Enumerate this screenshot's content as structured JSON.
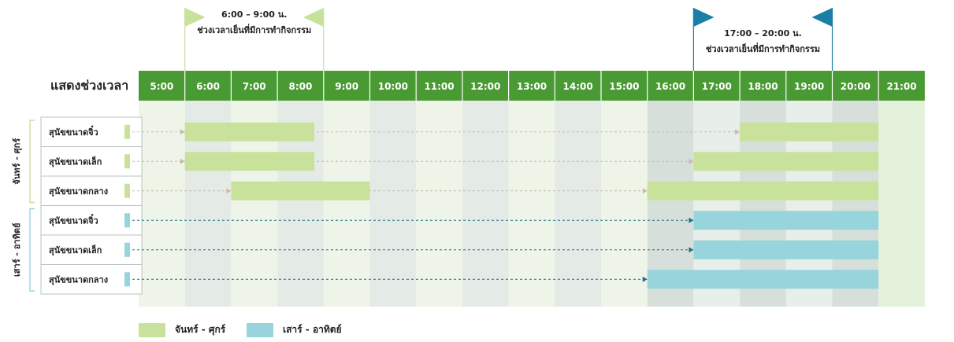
{
  "chart_data": {
    "type": "gantt",
    "header_label": "แสดงช่วงเวลา",
    "hours": [
      "5:00",
      "6:00",
      "7:00",
      "8:00",
      "9:00",
      "10:00",
      "11:00",
      "12:00",
      "13:00",
      "14:00",
      "15:00",
      "16:00",
      "17:00",
      "18:00",
      "19:00",
      "20:00",
      "21:00"
    ],
    "windows": [
      {
        "start": 6,
        "end": 9,
        "time_label": "6:00 – 9:00 น.",
        "desc": "ช่วงเวลาเย็นที่มีการทำกิจกรรม",
        "color": "#c9e29b"
      },
      {
        "start": 17,
        "end": 20,
        "time_label": "17:00 – 20:00 น.",
        "desc": "ช่วงเวลาเย็นที่มีการทำกิจกรรม",
        "color": "#1a7ea6"
      }
    ],
    "groups": [
      {
        "name": "จันทร์ - ศุกร์",
        "color": "#c9e29b",
        "arrow_color": "#c8bba8",
        "rows": [
          {
            "label": "สุนัขขนาดจิ๋ว",
            "bars": [
              [
                6,
                8.8
              ],
              [
                18,
                21
              ]
            ]
          },
          {
            "label": "สุนัขขนาดเล็ก",
            "bars": [
              [
                6,
                8.8
              ],
              [
                17,
                21
              ]
            ]
          },
          {
            "label": "สุนัขขนาดกลาง",
            "bars": [
              [
                7,
                10
              ],
              [
                16,
                21
              ]
            ]
          }
        ]
      },
      {
        "name": "เสาร์ - อาทิตย์",
        "color": "#97d4dc",
        "arrow_color": "#1b6e8c",
        "rows": [
          {
            "label": "สุนัขขนาดจิ๋ว",
            "bars": [
              [
                17,
                21
              ]
            ]
          },
          {
            "label": "สุนัขขนาดเล็ก",
            "bars": [
              [
                17,
                21
              ]
            ]
          },
          {
            "label": "สุนัขขนาดกลาง",
            "bars": [
              [
                16,
                21
              ]
            ]
          }
        ]
      }
    ]
  },
  "legend": [
    {
      "label": "จันทร์ - ศุกร์",
      "color": "#c9e29b"
    },
    {
      "label": "เสาร์ - อาทิตย์",
      "color": "#97d4dc"
    }
  ]
}
